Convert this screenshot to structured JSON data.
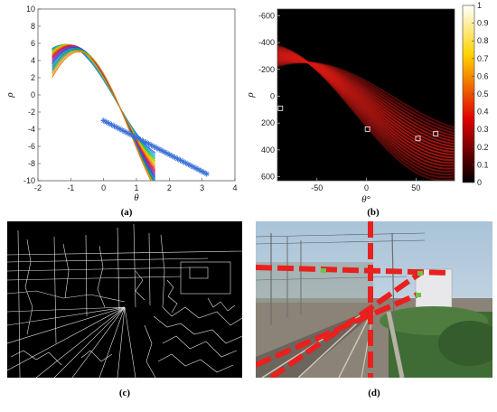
{
  "chart_data": [
    {
      "panel": "a",
      "type": "line",
      "caption": "(a)",
      "xlabel": "θ",
      "ylabel": "ρ",
      "xlim": [
        -2,
        4
      ],
      "ylim": [
        -10,
        10
      ],
      "xticks": [
        -2,
        -1,
        0,
        1,
        2,
        3,
        4
      ],
      "yticks": [
        10,
        8,
        6,
        4,
        2,
        0,
        -2,
        -4,
        -6,
        -8,
        -10
      ],
      "xtick_labels": [
        "-2",
        "-1",
        "0",
        "1",
        "2",
        "3",
        "4"
      ],
      "ytick_labels": [
        "10",
        "8",
        "6",
        "4",
        "2",
        "0",
        "-2",
        "-4",
        "-6",
        "-8",
        "-10"
      ],
      "sinusoid_theta_range": [
        -1.5708,
        1.5708
      ],
      "sinusoid_intersection": {
        "theta": 0.5,
        "rho": -1.5
      },
      "sinusoid_amplitude_range": [
        6.5,
        9.5
      ],
      "sinusoid_count": 24,
      "sinusoid_colors": [
        "#1f4fff",
        "#2a7fff",
        "#00b4d8",
        "#00c08b",
        "#3cb44b",
        "#7cc000",
        "#b8c800",
        "#e6c200",
        "#f0a000",
        "#f57c00",
        "#e8541a",
        "#d62728",
        "#c2185b",
        "#9c27b0",
        "#7b3fbf",
        "#5e35b1",
        "#3949ab",
        "#1e88e5",
        "#0097a7",
        "#00897b",
        "#43a047",
        "#9e9d24",
        "#f9a825",
        "#ef6c00"
      ],
      "marker_series": {
        "marker": "*",
        "color": "#3a6fd8",
        "x_start": 0.0,
        "x_end": 3.14,
        "y_start": -3.0,
        "y_end": -9.2,
        "count": 40
      }
    },
    {
      "panel": "b",
      "type": "heatmap",
      "caption": "(b)",
      "xlabel": "θ°",
      "ylabel": "ρ",
      "xlim": [
        -90,
        89
      ],
      "ylim": [
        -650,
        630
      ],
      "xticks": [
        -50,
        0,
        50
      ],
      "yticks": [
        -600,
        -400,
        -200,
        0,
        200,
        400,
        600
      ],
      "xtick_labels": [
        "-50",
        "0",
        "50"
      ],
      "ytick_labels": [
        "-600",
        "-400",
        "-200",
        "0",
        "200",
        "400",
        "600"
      ],
      "y_reversed": true,
      "colorbar": {
        "range": [
          0,
          1
        ],
        "ticks": [
          0,
          0.1,
          0.2,
          0.3,
          0.4,
          0.5,
          0.6,
          0.7,
          0.8,
          0.9,
          1
        ],
        "tick_labels": [
          "0",
          "0.1",
          "0.2",
          "0.3",
          "0.4",
          "0.5",
          "0.6",
          "0.7",
          "0.8",
          "0.9",
          "1"
        ],
        "colormap": "hot"
      },
      "peaks": [
        {
          "theta": -87,
          "rho": 90
        },
        {
          "theta": 1,
          "rho": 245
        },
        {
          "theta": 52,
          "rho": 315
        },
        {
          "theta": 70,
          "rho": 280
        }
      ]
    },
    {
      "panel": "c",
      "type": "image",
      "caption": "(c)",
      "content": "edge-detection-map"
    },
    {
      "panel": "d",
      "type": "image",
      "caption": "(d)",
      "content": "railway-scene-detected-lines"
    }
  ]
}
